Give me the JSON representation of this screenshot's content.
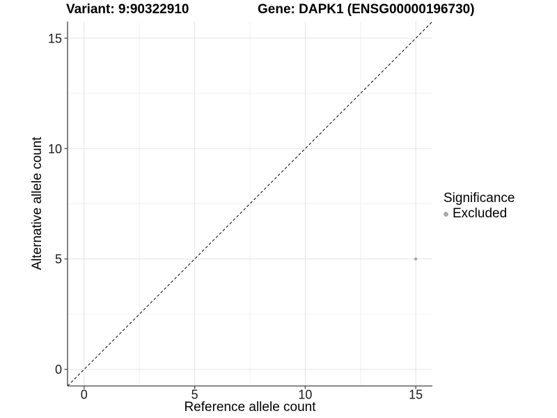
{
  "header": {
    "variant_title": "Variant: 9:90322910",
    "gene_title": "Gene: DAPK1 (ENSG00000196730)"
  },
  "chart_data": {
    "type": "scatter",
    "title": "Variant: 9:90322910  |  Gene: DAPK1 (ENSG00000196730)",
    "xlabel": "Reference allele count",
    "ylabel": "Alternative allele count",
    "xlim": [
      -0.75,
      15.75
    ],
    "ylim": [
      -0.75,
      15.75
    ],
    "x_ticks": [
      0,
      5,
      10,
      15
    ],
    "y_ticks": [
      0,
      5,
      10,
      15
    ],
    "x_minor_ticks": [
      2.5,
      7.5,
      12.5
    ],
    "y_minor_ticks": [
      2.5,
      7.5,
      12.5
    ],
    "grid": true,
    "series": [
      {
        "name": "Excluded",
        "color": "#aaaaaa",
        "points": [
          {
            "x": 15,
            "y": 5
          }
        ]
      }
    ],
    "reference_line": {
      "slope": 1,
      "intercept": 0,
      "style": "dashed",
      "color": "#000000"
    },
    "legend": {
      "title": "Significance",
      "position": "right",
      "items": [
        {
          "label": "Excluded",
          "color": "#aaaaaa"
        }
      ]
    }
  },
  "colors": {
    "background": "#ffffff",
    "grid_major": "#e3e3e3",
    "grid_minor": "#efefef",
    "axis": "#404040",
    "tick_text": "#1a1a1a",
    "point": "#aaaaaa"
  }
}
